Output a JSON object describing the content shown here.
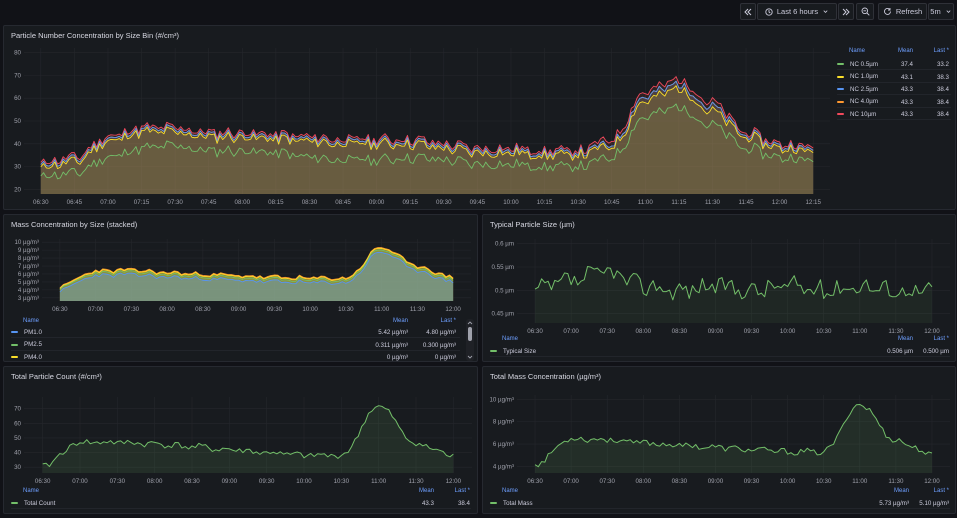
{
  "toolbar": {
    "back_icon": "chevrons-left-icon",
    "time_range": "Last 6 hours",
    "forward_icon": "chevrons-right-icon",
    "zoom_icon": "zoom-out-icon",
    "refresh_label": "Refresh",
    "interval": "5m"
  },
  "colors": {
    "green": "#73bf69",
    "yellow": "#fade2a",
    "blue": "#5794f2",
    "orange": "#ff9830",
    "red": "#f2495c",
    "beige": "#d6d08f"
  },
  "panels": {
    "nc": {
      "title": "Particle Number Concentration by Size Bin (#/cm³)",
      "chart_data": {
        "type": "area",
        "x": [
          "06:30",
          "06:45",
          "07:00",
          "07:15",
          "07:30",
          "07:45",
          "08:00",
          "08:15",
          "08:30",
          "08:45",
          "09:00",
          "09:15",
          "09:30",
          "09:45",
          "10:00",
          "10:15",
          "10:30",
          "10:45",
          "11:00",
          "11:15",
          "11:30",
          "11:45",
          "12:00",
          "12:15"
        ],
        "ylim": [
          18,
          82
        ],
        "yticks": [
          20,
          30,
          40,
          50,
          60,
          70,
          80
        ],
        "series": [
          {
            "name": "NC 0.5µm",
            "color": "green",
            "values": [
              26,
              27,
              34,
              38,
              39,
              37,
              37,
              36,
              34,
              33,
              33,
              34,
              33,
              31,
              31,
              30,
              30,
              34,
              52,
              56,
              48,
              38,
              34,
              33
            ]
          },
          {
            "name": "NC 1.0µm",
            "color": "yellow",
            "values": [
              30,
              32,
              41,
              45,
              45,
              43,
              43,
              42,
              41,
              40,
              40,
              40,
              38,
              36,
              36,
              35,
              35,
              39,
              59,
              64,
              54,
              43,
              38,
              37
            ]
          },
          {
            "name": "NC 2.5µm",
            "color": "blue",
            "values": [
              31,
              33,
              42,
              46,
              46,
              44,
              44,
              43,
              42,
              41,
              41,
              41,
              39,
              37,
              37,
              36,
              36,
              40,
              61,
              66,
              56,
              44,
              39,
              38
            ]
          },
          {
            "name": "NC 4.0µm",
            "color": "orange",
            "values": [
              31,
              33,
              42,
              46,
              46,
              44,
              44,
              43,
              42,
              41,
              41,
              41,
              39,
              37,
              37,
              36,
              36,
              40,
              61,
              66,
              56,
              44,
              39,
              38
            ]
          },
          {
            "name": "NC 10µm",
            "color": "red",
            "values": [
              32,
              34,
              43,
              47,
              47,
              45,
              45,
              44,
              43,
              42,
              42,
              42,
              40,
              38,
              38,
              37,
              37,
              42,
              63,
              68,
              58,
              45,
              40,
              39
            ]
          }
        ]
      },
      "legend": {
        "headers": {
          "name": "Name",
          "mean": "Mean",
          "last": "Last *"
        },
        "rows": [
          {
            "name": "NC 0.5µm",
            "mean": "37.4",
            "last": "33.2",
            "color": "green"
          },
          {
            "name": "NC 1.0µm",
            "mean": "43.1",
            "last": "38.3",
            "color": "yellow"
          },
          {
            "name": "NC 2.5µm",
            "mean": "43.3",
            "last": "38.4",
            "color": "blue"
          },
          {
            "name": "NC 4.0µm",
            "mean": "43.3",
            "last": "38.4",
            "color": "orange"
          },
          {
            "name": "NC 10µm",
            "mean": "43.3",
            "last": "38.4",
            "color": "red"
          }
        ]
      }
    },
    "mass": {
      "title": "Mass Concentration by Size (stacked)",
      "chart_data": {
        "type": "area",
        "x": [
          "06:30",
          "07:00",
          "07:30",
          "08:00",
          "08:30",
          "09:00",
          "09:30",
          "10:00",
          "10:30",
          "11:00",
          "11:30",
          "12:00"
        ],
        "ylim": [
          2.6,
          10.4
        ],
        "ytick_values": [
          3,
          4,
          5,
          6,
          7,
          8,
          9,
          10
        ],
        "ytick_labels": [
          "3 µg/m³",
          "4 µg/m³",
          "5 µg/m³",
          "6 µg/m³",
          "7 µg/m³",
          "8 µg/m³",
          "9 µg/m³",
          "10 µg/m³"
        ],
        "series": [
          {
            "name": "PM1.0",
            "color": "blue",
            "values": [
              4.0,
              5.8,
              5.9,
              5.6,
              5.4,
              5.2,
              5.0,
              4.9,
              4.9,
              8.8,
              6.4,
              5.0
            ]
          },
          {
            "name": "PM2.5",
            "color": "green",
            "values": [
              4.3,
              6.1,
              6.2,
              5.9,
              5.7,
              5.5,
              5.3,
              5.2,
              5.2,
              9.1,
              6.7,
              5.3
            ]
          },
          {
            "name": "PM4.0",
            "color": "yellow",
            "values": [
              4.4,
              6.3,
              6.4,
              6.1,
              5.9,
              5.7,
              5.5,
              5.4,
              5.4,
              9.3,
              6.9,
              5.5
            ]
          },
          {
            "name": "PM10",
            "color": "orange",
            "values": [
              4.5,
              6.4,
              6.5,
              6.2,
              6.0,
              5.8,
              5.6,
              5.5,
              5.5,
              9.4,
              7.0,
              5.6
            ]
          }
        ]
      },
      "legend": {
        "headers": {
          "name": "Name",
          "mean": "Mean",
          "last": "Last *"
        },
        "rows": [
          {
            "name": "PM1.0",
            "mean": "5.42 µg/m³",
            "last": "4.80 µg/m³",
            "color": "blue"
          },
          {
            "name": "PM2.5",
            "mean": "0.311 µg/m³",
            "last": "0.300 µg/m³",
            "color": "green"
          },
          {
            "name": "PM4.0",
            "mean": "0 µg/m³",
            "last": "0 µg/m³",
            "color": "yellow"
          }
        ]
      }
    },
    "size": {
      "title": "Typical Particle Size (µm)",
      "chart_data": {
        "type": "line",
        "x": [
          "06:30",
          "07:00",
          "07:30",
          "08:00",
          "08:30",
          "09:00",
          "09:30",
          "10:00",
          "10:30",
          "11:00",
          "11:30",
          "12:00"
        ],
        "ylim": [
          0.43,
          0.61
        ],
        "ytick_values": [
          0.45,
          0.5,
          0.55,
          0.6
        ],
        "ytick_labels": [
          "0.45 µm",
          "0.5 µm",
          "0.55 µm",
          "0.6 µm"
        ],
        "series": [
          {
            "name": "Typical Size",
            "color": "green",
            "values": [
              0.5,
              0.52,
              0.54,
              0.51,
              0.5,
              0.51,
              0.5,
              0.51,
              0.5,
              0.51,
              0.5,
              0.5
            ]
          }
        ]
      },
      "legend": {
        "headers": {
          "name": "Name",
          "mean": "Mean",
          "last": "Last *"
        },
        "rows": [
          {
            "name": "Typical Size",
            "mean": "0.506 µm",
            "last": "0.500 µm",
            "color": "green"
          }
        ]
      }
    },
    "count": {
      "title": "Total Particle Count (#/cm³)",
      "chart_data": {
        "type": "area",
        "x": [
          "06:30",
          "07:00",
          "07:30",
          "08:00",
          "08:30",
          "09:00",
          "09:30",
          "10:00",
          "10:30",
          "11:00",
          "11:30",
          "12:00"
        ],
        "ylim": [
          26,
          78
        ],
        "yticks": [
          30,
          40,
          50,
          60,
          70
        ],
        "series": [
          {
            "name": "Total Count",
            "color": "green",
            "values": [
              31,
              47,
              47,
              46,
              44,
              42,
              40,
              38,
              38,
              72,
              46,
              38
            ]
          }
        ]
      },
      "legend": {
        "headers": {
          "name": "Name",
          "mean": "Mean",
          "last": "Last *"
        },
        "rows": [
          {
            "name": "Total Count",
            "mean": "43.3",
            "last": "38.4",
            "color": "green"
          }
        ]
      }
    },
    "totalmass": {
      "title": "Total Mass Concentration (µg/m³)",
      "chart_data": {
        "type": "area",
        "x": [
          "06:30",
          "07:00",
          "07:30",
          "08:00",
          "08:30",
          "09:00",
          "09:30",
          "10:00",
          "10:30",
          "11:00",
          "11:30",
          "12:00"
        ],
        "ylim": [
          3.4,
          10.4
        ],
        "ytick_values": [
          4,
          6,
          8,
          10
        ],
        "ytick_labels": [
          "4 µg/m³",
          "6 µg/m³",
          "8 µg/m³",
          "10 µg/m³"
        ],
        "series": [
          {
            "name": "Total Mass",
            "color": "green",
            "values": [
              4.2,
              6.5,
              6.4,
              6.1,
              5.9,
              5.7,
              5.5,
              5.3,
              5.3,
              9.6,
              6.3,
              5.1
            ]
          }
        ]
      },
      "legend": {
        "headers": {
          "name": "Name",
          "mean": "Mean",
          "last": "Last *"
        },
        "rows": [
          {
            "name": "Total Mass",
            "mean": "5.73 µg/m³",
            "last": "5.10 µg/m³",
            "color": "green"
          }
        ]
      }
    }
  }
}
